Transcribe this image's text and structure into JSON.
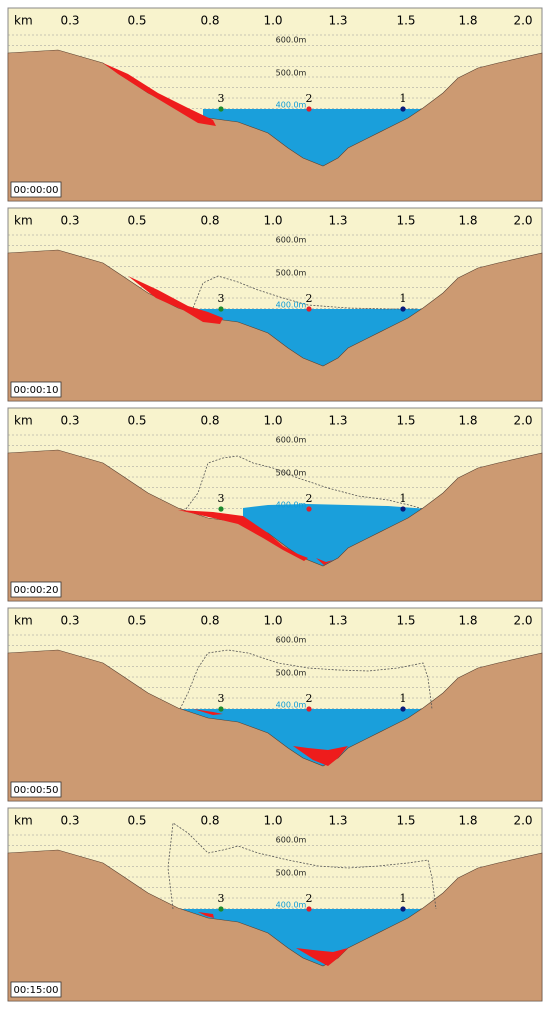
{
  "axis": {
    "unit": "km",
    "ticks": [
      "0.3",
      "0.5",
      "0.8",
      "1.0",
      "1.3",
      "1.5",
      "1.8",
      "2.0"
    ]
  },
  "elevations": [
    "600.0m",
    "500.0m",
    "400.0m"
  ],
  "points": [
    "1",
    "2",
    "3"
  ],
  "panels": [
    {
      "time": "00:00:00"
    },
    {
      "time": "00:00:10"
    },
    {
      "time": "00:00:20"
    },
    {
      "time": "00:00:50"
    },
    {
      "time": "00:15:00"
    }
  ]
}
